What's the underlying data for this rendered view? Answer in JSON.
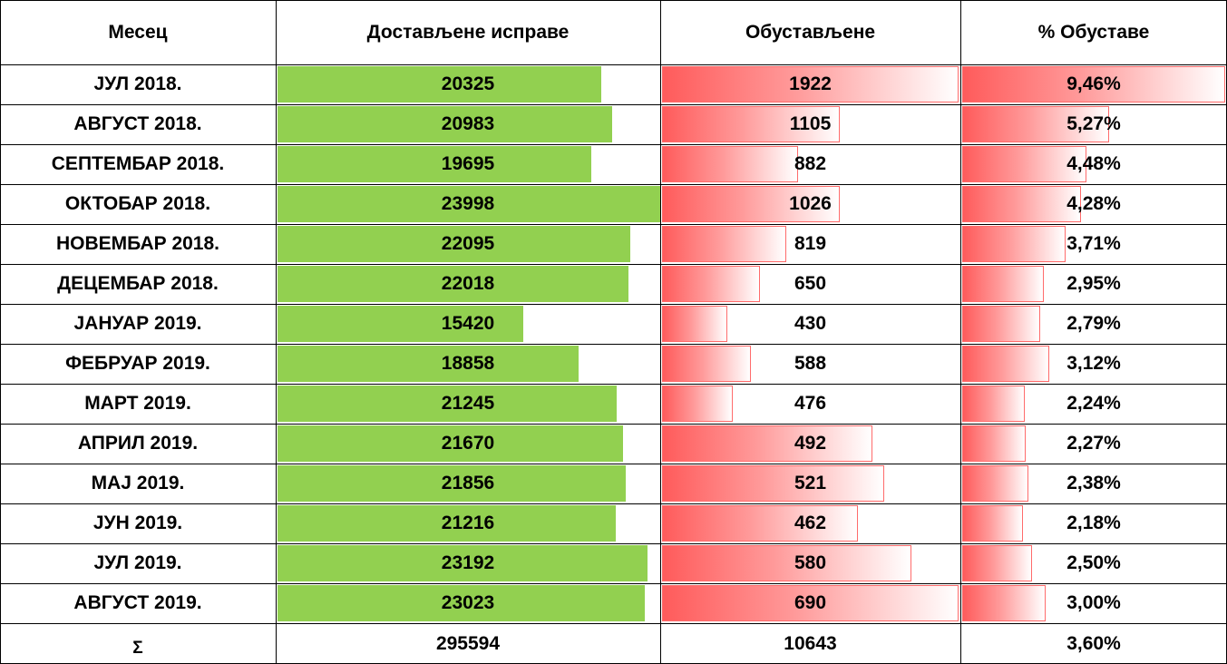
{
  "chart_data": {
    "type": "table",
    "columns": [
      "Месец",
      "Достављене исправе",
      "Обустављене",
      "% Обуставе"
    ],
    "rows": [
      {
        "month": "ЈУЛ 2018.",
        "delivered": 20325,
        "suspended": 1922,
        "pct": "9,46%",
        "pct_value": 9.46
      },
      {
        "month": "АВГУСТ 2018.",
        "delivered": 20983,
        "suspended": 1105,
        "pct": "5,27%",
        "pct_value": 5.27
      },
      {
        "month": "СЕПТЕМБАР 2018.",
        "delivered": 19695,
        "suspended": 882,
        "pct": "4,48%",
        "pct_value": 4.48
      },
      {
        "month": "ОКТОБАР 2018.",
        "delivered": 23998,
        "suspended": 1026,
        "pct": "4,28%",
        "pct_value": 4.28
      },
      {
        "month": "НОВЕМБАР 2018.",
        "delivered": 22095,
        "suspended": 819,
        "pct": "3,71%",
        "pct_value": 3.71
      },
      {
        "month": "ДЕЦЕМБАР 2018.",
        "delivered": 22018,
        "suspended": 650,
        "pct": "2,95%",
        "pct_value": 2.95
      },
      {
        "month": "ЈАНУАР 2019.",
        "delivered": 15420,
        "suspended": 430,
        "pct": "2,79%",
        "pct_value": 2.79
      },
      {
        "month": "ФЕБРУАР 2019.",
        "delivered": 18858,
        "suspended": 588,
        "pct": "3,12%",
        "pct_value": 3.12
      },
      {
        "month": "МАРТ 2019.",
        "delivered": 21245,
        "suspended": 476,
        "pct": "2,24%",
        "pct_value": 2.24
      },
      {
        "month": "АПРИЛ 2019.",
        "delivered": 21670,
        "suspended": 492,
        "pct": "2,27%",
        "pct_value": 2.27
      },
      {
        "month": "МАЈ 2019.",
        "delivered": 21856,
        "suspended": 521,
        "pct": "2,38%",
        "pct_value": 2.38
      },
      {
        "month": "ЈУН 2019.",
        "delivered": 21216,
        "suspended": 462,
        "pct": "2,18%",
        "pct_value": 2.18
      },
      {
        "month": "ЈУЛ 2019.",
        "delivered": 23192,
        "suspended": 580,
        "pct": "2,50%",
        "pct_value": 2.5
      },
      {
        "month": "АВГУСТ 2019.",
        "delivered": 23023,
        "suspended": 690,
        "pct": "3,00%",
        "pct_value": 3.0
      }
    ],
    "suspended_bar_fraction": [
      1.0,
      0.6,
      0.46,
      0.6,
      0.42,
      0.33,
      0.22,
      0.3,
      0.24,
      0.71,
      0.75,
      0.66,
      0.84,
      1.0
    ],
    "totals": {
      "label": "Σ",
      "delivered": "295594",
      "suspended": "10643",
      "pct": "3,60%"
    },
    "colors": {
      "delivered_bar": "#92d050",
      "suspended_bar": "#ff5b5b",
      "pct_bar": "#ff5b5b"
    }
  }
}
